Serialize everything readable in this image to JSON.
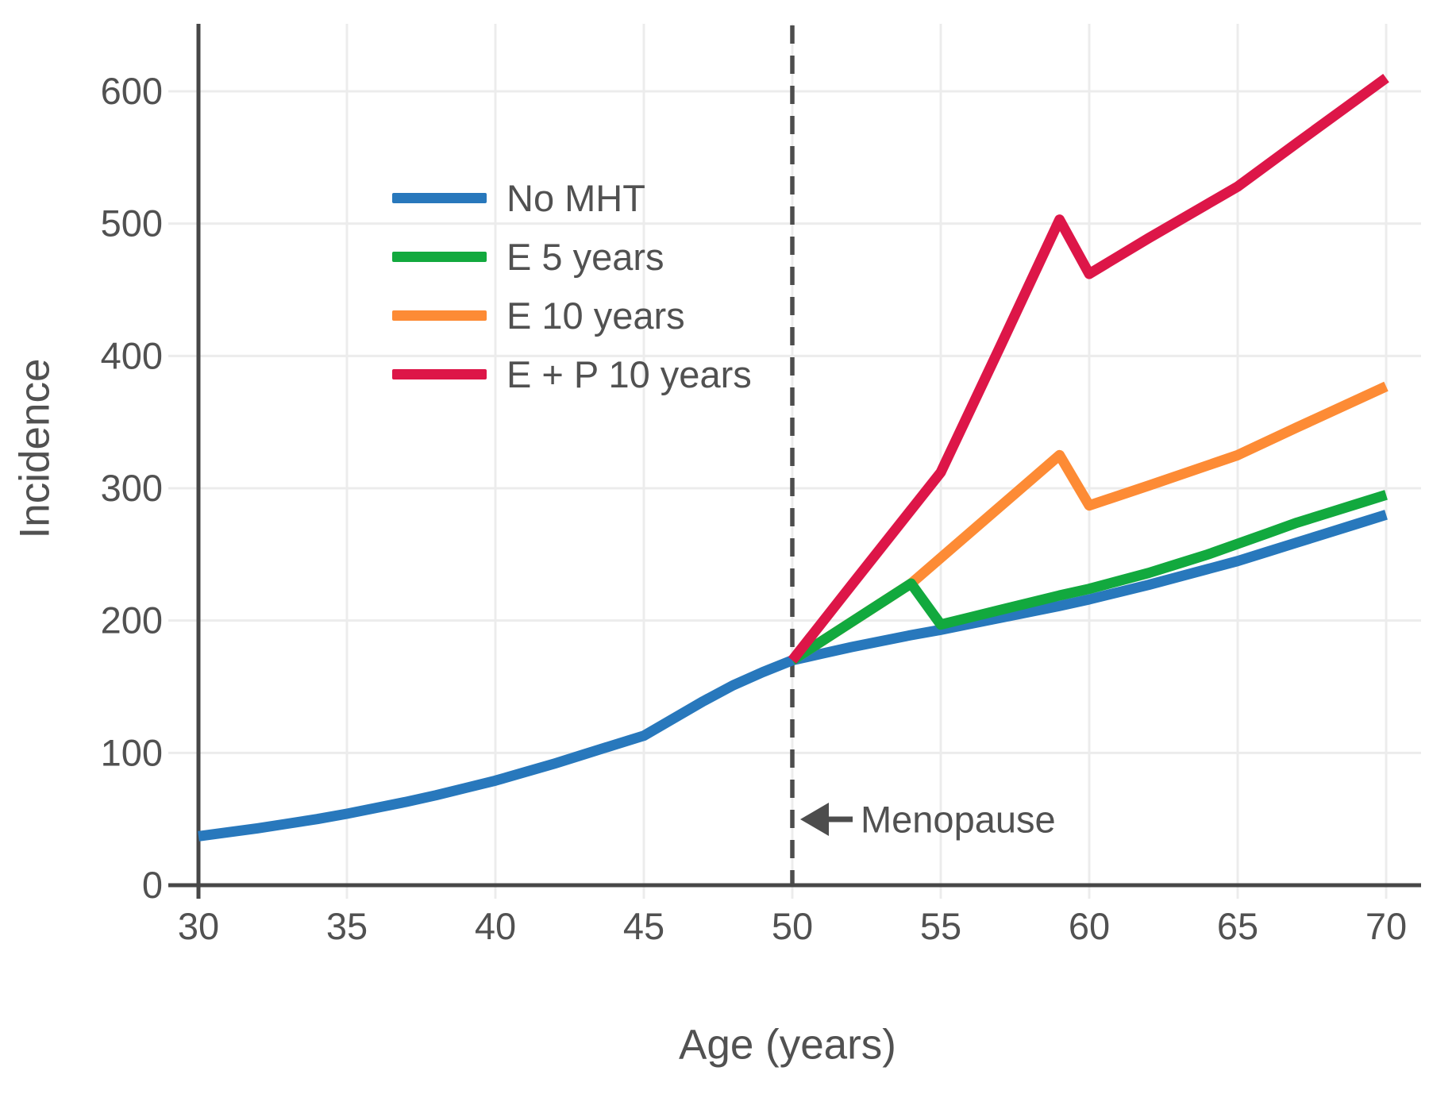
{
  "figure": {
    "background": "#ffffff",
    "text_color": "#515151",
    "grid_color": "#ececec",
    "axis_color": "#474747",
    "annotation_color": "#4d4d4d"
  },
  "chart_data": {
    "type": "line",
    "title": "",
    "xlabel": "Age (years)",
    "ylabel": "Incidence",
    "xlim": [
      30,
      70
    ],
    "ylim": [
      0,
      650
    ],
    "x_ticks": [
      30,
      35,
      40,
      45,
      50,
      55,
      60,
      65,
      70
    ],
    "y_ticks": [
      0,
      100,
      200,
      300,
      400,
      500,
      600
    ],
    "grid": true,
    "legend_position": "upper left inside plot",
    "annotation": {
      "label": "Menopause",
      "x": 50,
      "style": "dashed vertical line with left-pointing arrow"
    },
    "series": [
      {
        "name": "No MHT",
        "color": "#2878bc",
        "points": [
          [
            30,
            37
          ],
          [
            31,
            40
          ],
          [
            32,
            43
          ],
          [
            33,
            46.5
          ],
          [
            34,
            50
          ],
          [
            35,
            54
          ],
          [
            36,
            58.5
          ],
          [
            37,
            63
          ],
          [
            38,
            68
          ],
          [
            39,
            73.5
          ],
          [
            40,
            79
          ],
          [
            41,
            85.5
          ],
          [
            42,
            92
          ],
          [
            43,
            99
          ],
          [
            44,
            106
          ],
          [
            45,
            113
          ],
          [
            46,
            126
          ],
          [
            47,
            139
          ],
          [
            48,
            151
          ],
          [
            49,
            161
          ],
          [
            50,
            170
          ],
          [
            51,
            175
          ],
          [
            52,
            180
          ],
          [
            53,
            184.5
          ],
          [
            54,
            189
          ],
          [
            55,
            193
          ],
          [
            56,
            197.5
          ],
          [
            57,
            202
          ],
          [
            58,
            206.5
          ],
          [
            59,
            211
          ],
          [
            60,
            216
          ],
          [
            61,
            221.5
          ],
          [
            62,
            227
          ],
          [
            63,
            233
          ],
          [
            64,
            239
          ],
          [
            65,
            245
          ],
          [
            66,
            252
          ],
          [
            67,
            259
          ],
          [
            68,
            266
          ],
          [
            69,
            273
          ],
          [
            70,
            280
          ]
        ]
      },
      {
        "name": "E 5 years",
        "color": "#12a93e",
        "points": [
          [
            50,
            170
          ],
          [
            52,
            199
          ],
          [
            54,
            228
          ],
          [
            55,
            197
          ],
          [
            56,
            202.5
          ],
          [
            57,
            208
          ],
          [
            58,
            213.5
          ],
          [
            59,
            219
          ],
          [
            60,
            224
          ],
          [
            61,
            230
          ],
          [
            62,
            236
          ],
          [
            63,
            243
          ],
          [
            64,
            250
          ],
          [
            65,
            258
          ],
          [
            66,
            266
          ],
          [
            67,
            274
          ],
          [
            68,
            281
          ],
          [
            69,
            288
          ],
          [
            70,
            295
          ]
        ]
      },
      {
        "name": "E 10 years",
        "color": "#fd8b35",
        "points": [
          [
            50,
            170
          ],
          [
            52,
            199
          ],
          [
            54,
            228
          ],
          [
            59,
            325
          ],
          [
            60,
            287
          ],
          [
            62,
            302
          ],
          [
            65,
            325
          ],
          [
            67,
            346
          ],
          [
            70,
            377
          ]
        ]
      },
      {
        "name": "E + P 10 years",
        "color": "#dd1648",
        "points": [
          [
            50,
            170
          ],
          [
            52,
            227
          ],
          [
            55,
            312
          ],
          [
            57,
            407
          ],
          [
            59,
            503
          ],
          [
            60,
            462
          ],
          [
            62,
            489
          ],
          [
            65,
            528
          ],
          [
            67,
            561
          ],
          [
            70,
            610
          ]
        ]
      }
    ]
  }
}
